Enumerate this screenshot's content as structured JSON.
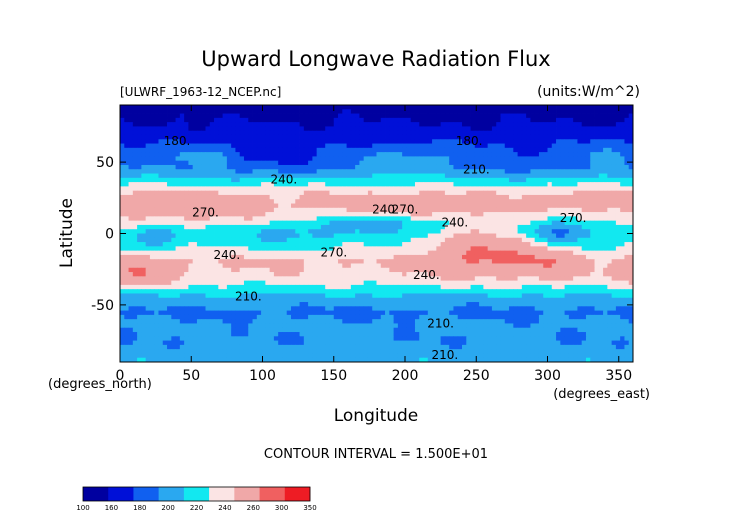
{
  "chart_data": {
    "type": "heatmap",
    "title": "Upward Longwave Radiation Flux",
    "subtitle_left": "[ULWRF_1963-12_NCEP.nc]",
    "subtitle_right": "(units:W/m^2)",
    "xlabel": "Longitude",
    "ylabel": "Latitude",
    "x_unit_label": "(degrees_east)",
    "y_unit_label": "(degrees_north)",
    "xlim": [
      0,
      360
    ],
    "ylim": [
      -90,
      90
    ],
    "x_ticks": [
      0,
      50,
      100,
      150,
      200,
      250,
      300,
      350
    ],
    "y_ticks": [
      -50,
      0,
      50
    ],
    "contour_interval_text": "CONTOUR INTERVAL = 1.500E+01",
    "contour_labels": [
      {
        "lon": 40,
        "lat": 62,
        "text": "180."
      },
      {
        "lon": 245,
        "lat": 62,
        "text": "180."
      },
      {
        "lon": 250,
        "lat": 42,
        "text": "210."
      },
      {
        "lon": 115,
        "lat": 35,
        "text": "240."
      },
      {
        "lon": 60,
        "lat": 12,
        "text": "270."
      },
      {
        "lon": 185,
        "lat": 14,
        "text": "240"
      },
      {
        "lon": 200,
        "lat": 14,
        "text": "270."
      },
      {
        "lon": 235,
        "lat": 5,
        "text": "240."
      },
      {
        "lon": 318,
        "lat": 8,
        "text": "270."
      },
      {
        "lon": 75,
        "lat": -18,
        "text": "240."
      },
      {
        "lon": 150,
        "lat": -16,
        "text": "270."
      },
      {
        "lon": 215,
        "lat": -32,
        "text": "240."
      },
      {
        "lon": 90,
        "lat": -47,
        "text": "210."
      },
      {
        "lon": 225,
        "lat": -66,
        "text": "210."
      },
      {
        "lon": 228,
        "lat": -88,
        "text": "210."
      }
    ],
    "colorbar": {
      "levels": [
        100,
        160,
        180,
        200,
        220,
        240,
        260,
        300,
        350
      ],
      "colors": [
        "#0000a0",
        "#0010d8",
        "#1060f0",
        "#2aa8f0",
        "#12e8f0",
        "#fbe4e4",
        "#f0a8a8",
        "#f06060",
        "#ee1c24"
      ]
    },
    "field": {
      "zonal_profile": [
        {
          "lat": 90,
          "value": 150
        },
        {
          "lat": 80,
          "value": 158
        },
        {
          "lat": 70,
          "value": 168
        },
        {
          "lat": 60,
          "value": 182
        },
        {
          "lat": 50,
          "value": 200
        },
        {
          "lat": 42,
          "value": 216
        },
        {
          "lat": 35,
          "value": 238
        },
        {
          "lat": 28,
          "value": 258
        },
        {
          "lat": 20,
          "value": 266
        },
        {
          "lat": 10,
          "value": 252
        },
        {
          "lat": 0,
          "value": 232
        },
        {
          "lat": -10,
          "value": 240
        },
        {
          "lat": -20,
          "value": 262
        },
        {
          "lat": -30,
          "value": 255
        },
        {
          "lat": -38,
          "value": 236
        },
        {
          "lat": -45,
          "value": 214
        },
        {
          "lat": -55,
          "value": 196
        },
        {
          "lat": -65,
          "value": 205
        },
        {
          "lat": -75,
          "value": 202
        },
        {
          "lat": -90,
          "value": 215
        }
      ],
      "anomalies": [
        {
          "lon": 255,
          "lat": -12,
          "amp": 60,
          "rlon": 35,
          "rlat": 14
        },
        {
          "lon": 15,
          "lat": -27,
          "amp": 45,
          "rlon": 20,
          "rlat": 10
        },
        {
          "lon": 300,
          "lat": -20,
          "amp": 35,
          "rlon": 20,
          "rlat": 12
        },
        {
          "lon": 45,
          "lat": 18,
          "amp": 20,
          "rlon": 40,
          "rlat": 10
        },
        {
          "lon": 205,
          "lat": 18,
          "amp": 20,
          "rlon": 40,
          "rlat": 8
        },
        {
          "lon": 185,
          "lat": 8,
          "amp": -35,
          "rlon": 45,
          "rlat": 7
        },
        {
          "lon": 25,
          "lat": -2,
          "amp": -30,
          "rlon": 20,
          "rlat": 8
        },
        {
          "lon": 310,
          "lat": 2,
          "amp": -40,
          "rlon": 25,
          "rlat": 10
        },
        {
          "lon": 120,
          "lat": 0,
          "amp": -20,
          "rlon": 35,
          "rlat": 8
        },
        {
          "lon": 100,
          "lat": 50,
          "amp": -22,
          "rlon": 60,
          "rlat": 12
        },
        {
          "lon": 290,
          "lat": 48,
          "amp": -18,
          "rlon": 50,
          "rlat": 10
        },
        {
          "lon": 60,
          "lat": 55,
          "amp": 25,
          "rlon": 25,
          "rlat": 8
        },
        {
          "lon": 200,
          "lat": 55,
          "amp": 15,
          "rlon": 40,
          "rlat": 8
        },
        {
          "lon": 330,
          "lat": 55,
          "amp": 20,
          "rlon": 25,
          "rlat": 8
        },
        {
          "lon": 330,
          "lat": 25,
          "amp": 10,
          "rlon": 30,
          "rlat": 8
        }
      ]
    },
    "grid": false
  }
}
